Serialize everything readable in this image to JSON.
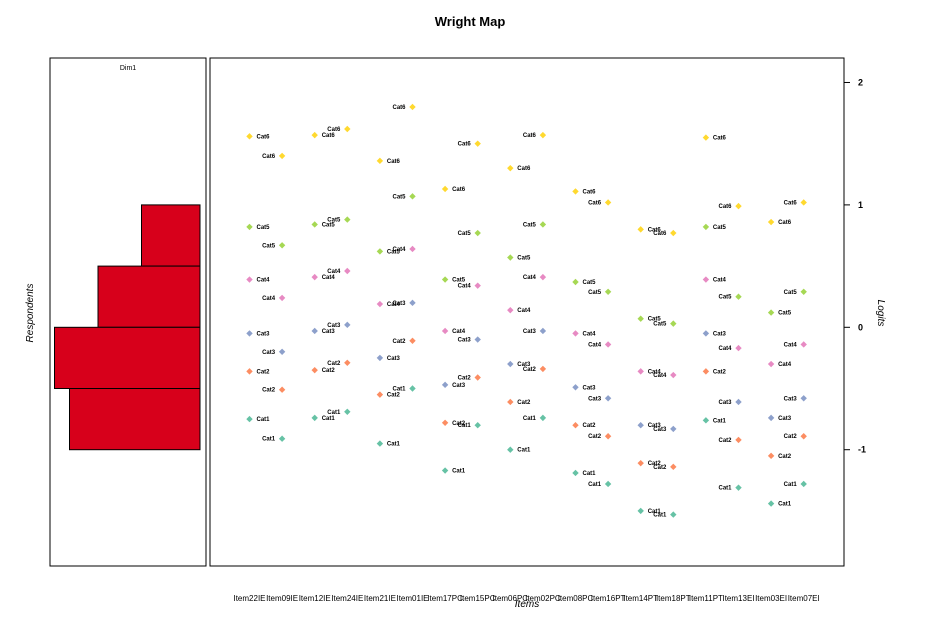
{
  "chart_data": {
    "type": "scatter",
    "title": "Wright Map",
    "dimension_label": "Dim1",
    "left_ylabel": "Respondents",
    "right_ylabel": "Logits",
    "xlabel": "Items",
    "ylim": [
      -1.95,
      2.2
    ],
    "yticks": [
      2,
      1,
      0,
      -1
    ],
    "histogram": {
      "color": "#D7001B",
      "bins": [
        {
          "low": 0.5,
          "high": 1.0,
          "width": 0.39
        },
        {
          "low": 0.0,
          "high": 0.5,
          "width": 0.68
        },
        {
          "low": -0.5,
          "high": 0.0,
          "width": 0.97
        },
        {
          "low": -1.0,
          "high": -0.5,
          "width": 0.87
        }
      ]
    },
    "categories": [
      "Cat1",
      "Cat2",
      "Cat3",
      "Cat4",
      "Cat5",
      "Cat6"
    ],
    "category_colors": [
      "#66C2A5",
      "#FC8D62",
      "#8DA0CB",
      "#E78AC3",
      "#A6D854",
      "#FFD92F"
    ],
    "items": [
      {
        "name": "Item22IE",
        "thresholds": [
          -0.75,
          -0.36,
          -0.05,
          0.39,
          0.82,
          1.56
        ]
      },
      {
        "name": "Item09IE",
        "thresholds": [
          -0.91,
          -0.51,
          -0.2,
          0.24,
          0.67,
          1.4
        ]
      },
      {
        "name": "Item12IE",
        "thresholds": [
          -0.74,
          -0.35,
          -0.03,
          0.41,
          0.84,
          1.57
        ]
      },
      {
        "name": "Item24IE",
        "thresholds": [
          -0.69,
          -0.29,
          0.02,
          0.46,
          0.88,
          1.62
        ]
      },
      {
        "name": "Item21IE",
        "thresholds": [
          -0.95,
          -0.55,
          -0.25,
          0.19,
          0.62,
          1.36
        ]
      },
      {
        "name": "Item01IE",
        "thresholds": [
          -0.5,
          -0.11,
          0.2,
          0.64,
          1.07,
          1.8
        ]
      },
      {
        "name": "Item17PC",
        "thresholds": [
          -1.17,
          -0.78,
          -0.47,
          -0.03,
          0.39,
          1.13
        ]
      },
      {
        "name": "Item15PC",
        "thresholds": [
          -0.8,
          -0.41,
          -0.1,
          0.34,
          0.77,
          1.5
        ]
      },
      {
        "name": "Item06PC",
        "thresholds": [
          -1.0,
          -0.61,
          -0.3,
          0.14,
          0.57,
          1.3
        ]
      },
      {
        "name": "Item02PC",
        "thresholds": [
          -0.74,
          -0.34,
          -0.03,
          0.41,
          0.84,
          1.57
        ]
      },
      {
        "name": "Item08PC",
        "thresholds": [
          -1.19,
          -0.8,
          -0.49,
          -0.05,
          0.37,
          1.11
        ]
      },
      {
        "name": "Item16PT",
        "thresholds": [
          -1.28,
          -0.89,
          -0.58,
          -0.14,
          0.29,
          1.02
        ]
      },
      {
        "name": "Item14PT",
        "thresholds": [
          -1.5,
          -1.11,
          -0.8,
          -0.36,
          0.07,
          0.8
        ]
      },
      {
        "name": "Item18PT",
        "thresholds": [
          -1.53,
          -1.14,
          -0.83,
          -0.39,
          0.03,
          0.77
        ]
      },
      {
        "name": "Item11PT",
        "thresholds": [
          -0.76,
          -0.36,
          -0.05,
          0.39,
          0.82,
          1.55
        ]
      },
      {
        "name": "Item13EI",
        "thresholds": [
          -1.31,
          -0.92,
          -0.61,
          -0.17,
          0.25,
          0.99
        ]
      },
      {
        "name": "Item03EI",
        "thresholds": [
          -1.44,
          -1.05,
          -0.74,
          -0.3,
          0.12,
          0.86
        ]
      },
      {
        "name": "Item07EI",
        "thresholds": [
          -1.28,
          -0.89,
          -0.58,
          -0.14,
          0.29,
          1.02
        ]
      }
    ]
  }
}
